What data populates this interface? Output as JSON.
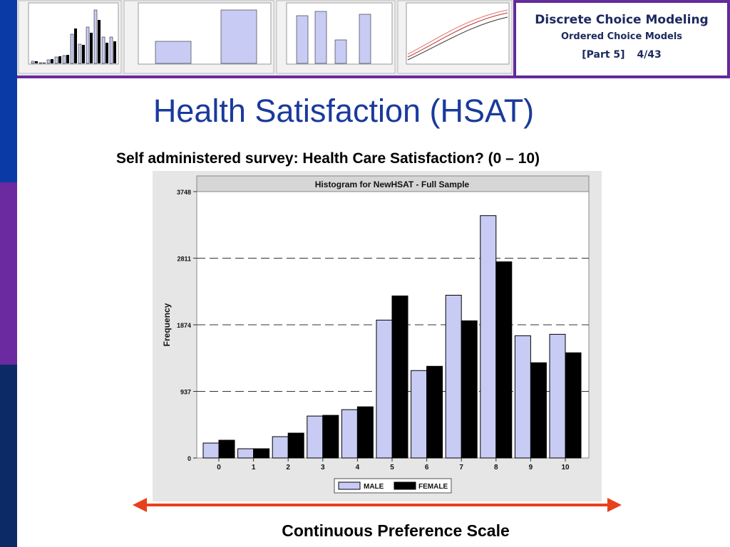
{
  "header": {
    "course_title": "Discrete Choice Modeling",
    "subtitle": "Ordered Choice Models",
    "part": "[Part 5]",
    "slide_number": "4/43"
  },
  "slide": {
    "title": "Health Satisfaction (HSAT)",
    "survey_text": "Self administered survey: Health Care Satisfaction? (0 – 10)",
    "scale_label": "Continuous Preference Scale"
  },
  "colors": {
    "male": "#c8ccf4",
    "female": "#000000",
    "title_blue": "#1a3a9c",
    "arrow": "#e8401c"
  },
  "chart_data": {
    "type": "bar",
    "title": "Histogram for NewHSAT - Full Sample",
    "ylabel": "Frequency",
    "xlabel": "",
    "categories": [
      "0",
      "1",
      "2",
      "3",
      "4",
      "5",
      "6",
      "7",
      "8",
      "9",
      "10"
    ],
    "yticks": [
      "0",
      "937",
      "1874",
      "2811",
      "3748"
    ],
    "ylim": [
      0,
      3748
    ],
    "grid": "horizontal dashed",
    "legend_placement": "bottom-center",
    "series": [
      {
        "name": "MALE",
        "values": [
          210,
          130,
          300,
          590,
          680,
          1940,
          1230,
          2290,
          3410,
          1720,
          1740
        ]
      },
      {
        "name": "FEMALE",
        "values": [
          250,
          130,
          350,
          600,
          720,
          2280,
          1290,
          1930,
          2760,
          1340,
          1480
        ]
      }
    ]
  }
}
